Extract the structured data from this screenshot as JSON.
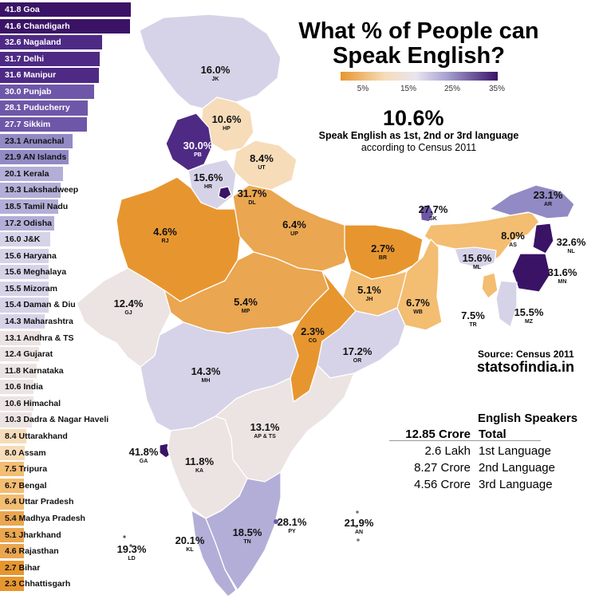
{
  "title": "What % of People can Speak English?",
  "legend": {
    "ticks": [
      "5%",
      "15%",
      "25%",
      "35%"
    ]
  },
  "headline": {
    "value": "10.6%",
    "line1": "Speak English as 1st, 2nd or 3rd language",
    "line2": "according to Census 2011"
  },
  "source": "Source: Census 2011",
  "site": "statsofindia.in",
  "speakers": {
    "heading": "English Speakers",
    "rows": [
      {
        "value": "12.85 Crore",
        "label": "Total"
      },
      {
        "value": "2.6 Lakh",
        "label": "1st Language"
      },
      {
        "value": "8.27 Crore",
        "label": "2nd Language"
      },
      {
        "value": "4.56 Crore",
        "label": "3rd Language"
      }
    ]
  },
  "colors": {
    "c1": "#3a1366",
    "c2": "#4e2a85",
    "c3": "#6e57a8",
    "c4": "#928ac4",
    "c5": "#b3aed7",
    "c6": "#d6d3e8",
    "c7": "#ece4e2",
    "c8": "#f6dcb8",
    "c9": "#f3bd72",
    "c10": "#eaa650",
    "c11": "#e7962f"
  },
  "chart_data": {
    "type": "bar",
    "categories": [
      "Goa",
      "Chandigarh",
      "Nagaland",
      "Delhi",
      "Manipur",
      "Punjab",
      "Puducherry",
      "Sikkim",
      "Arunachal",
      "AN Islands",
      "Kerala",
      "Lakshadweep",
      "Tamil Nadu",
      "Odisha",
      "J&K",
      "Haryana",
      "Meghalaya",
      "Mizoram",
      "Daman & Diu",
      "Maharashtra",
      "Andhra & TS",
      "Gujarat",
      "Karnataka",
      "India",
      "Himachal",
      "Dadra & Nagar Haveli",
      "Uttarakhand",
      "Assam",
      "Tripura",
      "Bengal",
      "Uttar Pradesh",
      "Madhya Pradesh",
      "Jharkhand",
      "Rajasthan",
      "Bihar",
      "Chhattisgarh"
    ],
    "values": [
      41.8,
      41.6,
      32.6,
      31.7,
      31.6,
      30.0,
      28.1,
      27.7,
      23.1,
      21.9,
      20.1,
      19.3,
      18.5,
      17.2,
      16.0,
      15.6,
      15.6,
      15.5,
      15.4,
      14.3,
      13.1,
      12.4,
      11.8,
      10.6,
      10.6,
      10.3,
      8.4,
      8.0,
      7.5,
      6.7,
      6.4,
      5.4,
      5.1,
      4.6,
      2.7,
      2.3
    ],
    "labels": [
      "41.8 Goa",
      "41.6 Chandigarh",
      "32.6 Nagaland",
      "31.7 Delhi",
      "31.6 Manipur",
      "30.0 Punjab",
      "28.1 Puducherry",
      "27.7 Sikkim",
      "23.1 Arunachal",
      "21.9 AN Islands",
      "20.1 Kerala",
      "19.3 Lakshadweep",
      "18.5 Tamil Nadu",
      "17.2 Odisha",
      "16.0 J&K",
      "15.6 Haryana",
      "15.6 Meghalaya",
      "15.5 Mizoram",
      "15.4 Daman & Diu",
      "14.3 Maharashtra",
      "13.1 Andhra & TS",
      "12.4 Gujarat",
      "11.8 Karnataka",
      "10.6 India",
      "10.6 Himachal",
      "10.3 Dadra & Nagar Haveli",
      "8.4 Uttarakhand",
      "8.0 Assam",
      "7.5 Tripura",
      "6.7 Bengal",
      "6.4 Uttar Pradesh",
      "5.4 Madhya Pradesh",
      "5.1 Jharkhand",
      "4.6 Rajasthan",
      "2.7 Bihar",
      "2.3 Chhattisgarh"
    ],
    "xlim": [
      0,
      42
    ]
  },
  "map_labels": [
    {
      "pct": "16.0%",
      "code": "JK"
    },
    {
      "pct": "10.6%",
      "code": "HP"
    },
    {
      "pct": "30.0%",
      "code": "PB",
      "white": true
    },
    {
      "pct": "8.4%",
      "code": "UT"
    },
    {
      "pct": "15.6%",
      "code": "HR"
    },
    {
      "pct": "31.7%",
      "code": "DL"
    },
    {
      "pct": "4.6%",
      "code": "RJ"
    },
    {
      "pct": "6.4%",
      "code": "UP"
    },
    {
      "pct": "27.7%",
      "code": "SK"
    },
    {
      "pct": "23.1%",
      "code": "AR"
    },
    {
      "pct": "2.7%",
      "code": "BR"
    },
    {
      "pct": "8.0%",
      "code": "AS"
    },
    {
      "pct": "32.6%",
      "code": "NL"
    },
    {
      "pct": "15.6%",
      "code": "ML"
    },
    {
      "pct": "31.6%",
      "code": "MN"
    },
    {
      "pct": "12.4%",
      "code": "GJ"
    },
    {
      "pct": "5.4%",
      "code": "MP"
    },
    {
      "pct": "5.1%",
      "code": "JH"
    },
    {
      "pct": "6.7%",
      "code": "WB"
    },
    {
      "pct": "7.5%",
      "code": "TR"
    },
    {
      "pct": "15.5%",
      "code": "MZ"
    },
    {
      "pct": "2.3%",
      "code": "CG"
    },
    {
      "pct": "17.2%",
      "code": "OR"
    },
    {
      "pct": "14.3%",
      "code": "MH"
    },
    {
      "pct": "13.1%",
      "code": "AP & TS"
    },
    {
      "pct": "41.8%",
      "code": "GA"
    },
    {
      "pct": "11.8%",
      "code": "KA"
    },
    {
      "pct": "28.1%",
      "code": "PY"
    },
    {
      "pct": "21.9%",
      "code": "AN"
    },
    {
      "pct": "20.1%",
      "code": "KL"
    },
    {
      "pct": "18.5%",
      "code": "TN"
    },
    {
      "pct": "19.3%",
      "code": "LD"
    }
  ]
}
